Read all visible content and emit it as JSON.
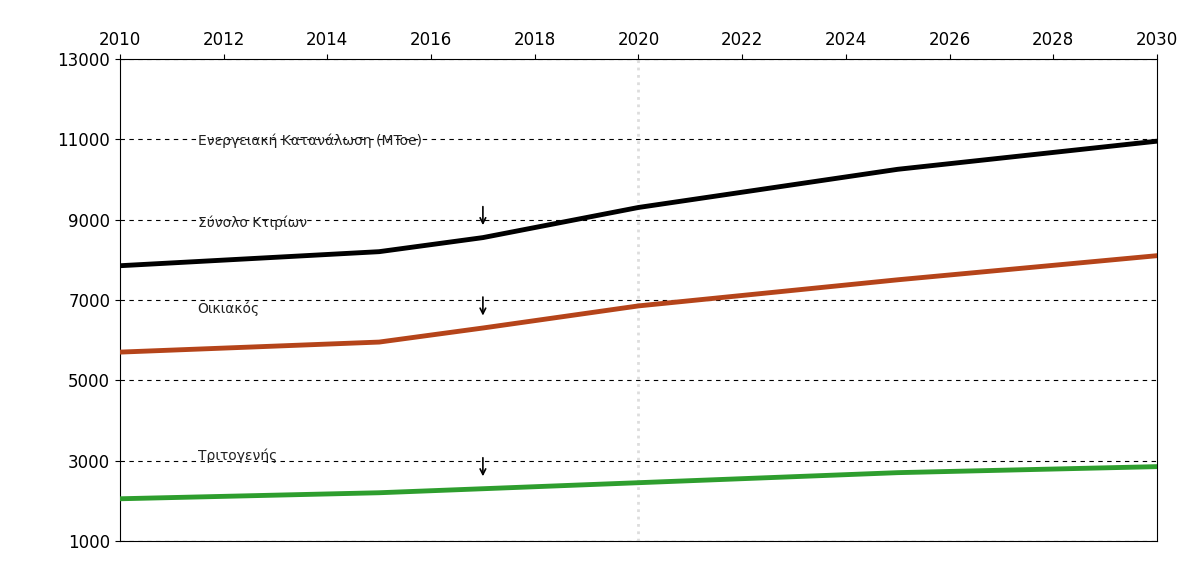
{
  "chart_data": {
    "type": "line",
    "annotation": "Ενεργειακή Κατανάλωση (MToe)",
    "x": [
      2010,
      2015,
      2017,
      2020,
      2025,
      2030
    ],
    "series": [
      {
        "name": "Σύνολο Κτιρίων",
        "color": "#000000",
        "values": [
          7850,
          8200,
          8550,
          9300,
          10250,
          10950
        ]
      },
      {
        "name": "Οικιακός",
        "color": "#b5441a",
        "values": [
          5700,
          5950,
          6300,
          6850,
          7500,
          8100
        ]
      },
      {
        "name": "Τριτογενής",
        "color": "#2e9e2e",
        "values": [
          2050,
          2200,
          2300,
          2450,
          2700,
          2850
        ]
      }
    ],
    "xlim": [
      2010,
      2030
    ],
    "xticks": [
      2010,
      2012,
      2014,
      2016,
      2018,
      2020,
      2022,
      2024,
      2026,
      2028,
      2030
    ],
    "ylim": [
      1000,
      13000
    ],
    "yticks": [
      1000,
      3000,
      5000,
      7000,
      9000,
      11000,
      13000
    ],
    "grid": true
  }
}
